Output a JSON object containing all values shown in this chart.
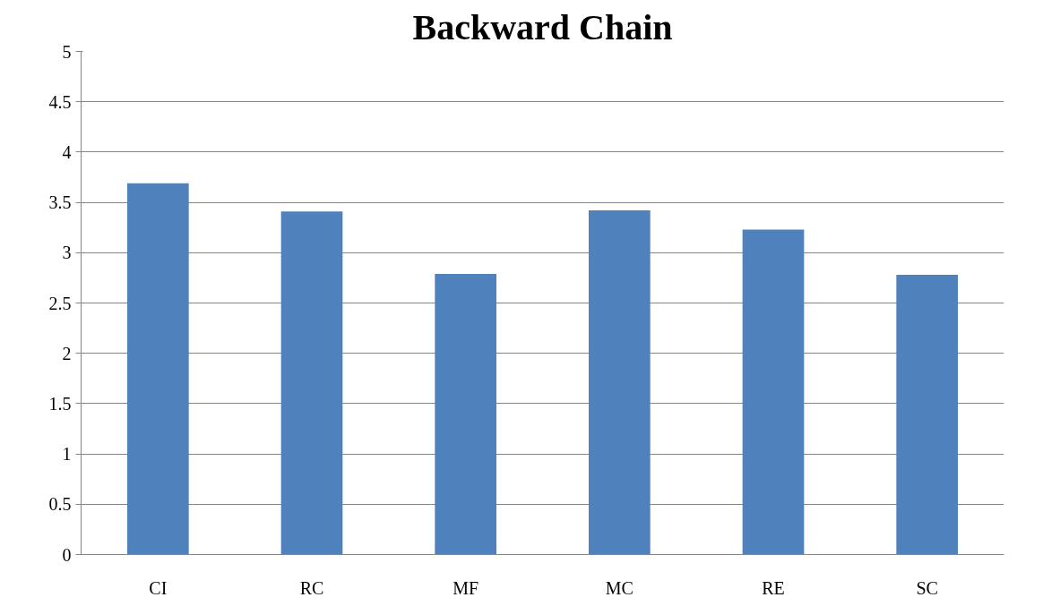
{
  "chart_data": {
    "type": "bar",
    "title": "Backward Chain",
    "categories": [
      "CI",
      "RC",
      "MF",
      "MC",
      "RE",
      "SC"
    ],
    "values": [
      3.69,
      3.41,
      2.79,
      3.42,
      3.23,
      2.78
    ],
    "color": "#4f81bd",
    "ylim": [
      0,
      5
    ],
    "yticks": [
      0,
      0.5,
      1,
      1.5,
      2,
      2.5,
      3,
      3.5,
      4,
      4.5,
      5
    ],
    "grid": "y"
  }
}
